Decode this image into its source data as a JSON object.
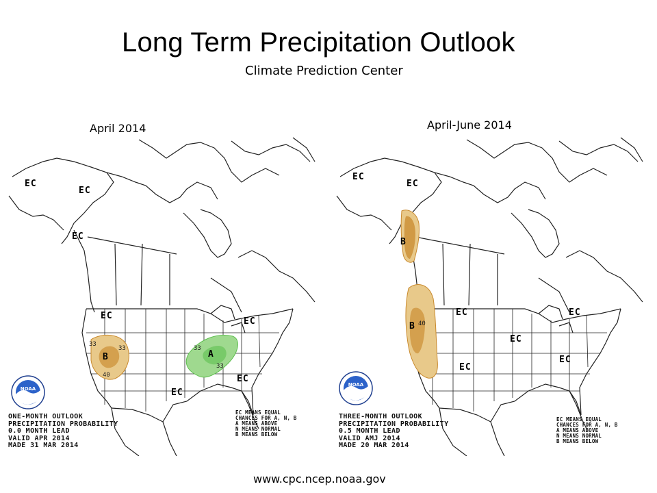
{
  "title": "Long Term Precipitation Outlook",
  "subtitle": "Climate Prediction Center",
  "footer_url": "www.cpc.ncep.noaa.gov",
  "colors": {
    "below_light": "#e8c98a",
    "below_dark": "#c98a2e",
    "above_light": "#9fd98f",
    "above_dark": "#5fbf50",
    "outline": "#222222"
  },
  "maps": [
    {
      "panel_label": "April  2014",
      "info_lines": [
        "ONE-MONTH OUTLOOK",
        "PRECIPITATION PROBABILITY",
        "0.0 MONTH LEAD",
        "VALID APR 2014",
        "MADE 31 MAR 2014"
      ],
      "legend_lines": [
        "EC MEANS EQUAL",
        "CHANCES FOR A, N, B",
        "A MEANS ABOVE",
        "N MEANS NORMAL",
        "B MEANS BELOW"
      ],
      "region_labels": [
        "EC",
        "EC",
        "EC",
        "EC",
        "EC",
        "EC",
        "EC",
        "B",
        "A"
      ],
      "contour_labels": [
        "33",
        "33",
        "40",
        "33",
        "33"
      ]
    },
    {
      "panel_label": "April-June 2014",
      "info_lines": [
        "THREE-MONTH OUTLOOK",
        "PRECIPITATION PROBABILITY",
        "0.5 MONTH LEAD",
        "VALID AMJ 2014",
        "MADE 20 MAR 2014"
      ],
      "legend_lines": [
        "EC MEANS EQUAL",
        "CHANCES FOR A, N, B",
        "A MEANS ABOVE",
        "N MEANS NORMAL",
        "B MEANS BELOW"
      ],
      "region_labels": [
        "EC",
        "EC",
        "B",
        "EC",
        "EC",
        "EC",
        "EC",
        "EC",
        "B"
      ],
      "contour_labels": [
        "40"
      ]
    }
  ]
}
